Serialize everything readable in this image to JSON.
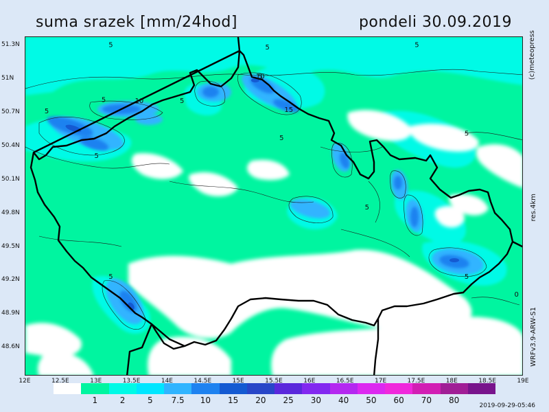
{
  "header": {
    "title": "suma srazek [mm/24hod]",
    "date": "pondeli 30.09.2019"
  },
  "side_labels": {
    "copyright": "(c)meteopress",
    "resolution": "res.4km",
    "model": "WRFv3.9-ARW-S1"
  },
  "timestamp": "2019-09-29-05:46",
  "map": {
    "lon_range": [
      12,
      19
    ],
    "lat_range": [
      48.35,
      51.38
    ],
    "lat_ticks": [
      {
        "value": 51.3,
        "label": "51.3N"
      },
      {
        "value": 51.0,
        "label": "51N"
      },
      {
        "value": 50.7,
        "label": "50.7N"
      },
      {
        "value": 50.4,
        "label": "50.4N"
      },
      {
        "value": 50.1,
        "label": "50.1N"
      },
      {
        "value": 49.8,
        "label": "49.8N"
      },
      {
        "value": 49.5,
        "label": "49.5N"
      },
      {
        "value": 49.2,
        "label": "49.2N"
      },
      {
        "value": 48.9,
        "label": "48.9N"
      },
      {
        "value": 48.6,
        "label": "48.6N"
      }
    ],
    "lon_ticks": [
      {
        "value": 12.0,
        "label": "12E"
      },
      {
        "value": 12.5,
        "label": "12.5E"
      },
      {
        "value": 13.0,
        "label": "13E"
      },
      {
        "value": 13.5,
        "label": "13.5E"
      },
      {
        "value": 14.0,
        "label": "14E"
      },
      {
        "value": 14.5,
        "label": "14.5E"
      },
      {
        "value": 15.0,
        "label": "15E"
      },
      {
        "value": 15.5,
        "label": "15.5E"
      },
      {
        "value": 16.0,
        "label": "16E"
      },
      {
        "value": 16.5,
        "label": "16.5E"
      },
      {
        "value": 17.0,
        "label": "17E"
      },
      {
        "value": 17.5,
        "label": "17.5E"
      },
      {
        "value": 18.0,
        "label": "18E"
      },
      {
        "value": 18.5,
        "label": "18.5E"
      },
      {
        "value": 19.0,
        "label": "19E"
      }
    ],
    "contour_labels": [
      {
        "text": "5",
        "lon": 13.2,
        "lat": 51.29
      },
      {
        "text": "5",
        "lon": 15.4,
        "lat": 51.27
      },
      {
        "text": "5",
        "lon": 17.5,
        "lat": 51.29
      },
      {
        "text": "5",
        "lon": 15.3,
        "lat": 51.01
      },
      {
        "text": "10",
        "lon": 15.3,
        "lat": 51.01
      },
      {
        "text": "5",
        "lon": 13.1,
        "lat": 50.8
      },
      {
        "text": "10",
        "lon": 13.6,
        "lat": 50.79
      },
      {
        "text": "5",
        "lon": 14.2,
        "lat": 50.79
      },
      {
        "text": "5",
        "lon": 12.3,
        "lat": 50.7
      },
      {
        "text": "15",
        "lon": 15.7,
        "lat": 50.71
      },
      {
        "text": "5",
        "lon": 15.6,
        "lat": 50.46
      },
      {
        "text": "5",
        "lon": 18.2,
        "lat": 50.5
      },
      {
        "text": "5",
        "lon": 13.0,
        "lat": 50.3
      },
      {
        "text": "5",
        "lon": 16.8,
        "lat": 49.84
      },
      {
        "text": "5",
        "lon": 13.2,
        "lat": 49.22
      },
      {
        "text": "5",
        "lon": 18.2,
        "lat": 49.22
      },
      {
        "text": "0",
        "lon": 18.9,
        "lat": 49.06
      }
    ]
  },
  "legend": {
    "colors": [
      "#ffffff",
      "#00f5a0",
      "#00fae6",
      "#00e6ff",
      "#30b4ff",
      "#1e82f0",
      "#145ad2",
      "#2846c8",
      "#5a28dc",
      "#8228f0",
      "#b428f0",
      "#dc28f0",
      "#f028dc",
      "#d21eb4",
      "#a01e96",
      "#78148c"
    ],
    "values": [
      "1",
      "2",
      "5",
      "7.5",
      "10",
      "15",
      "20",
      "25",
      "30",
      "40",
      "50",
      "60",
      "70",
      "80"
    ]
  }
}
